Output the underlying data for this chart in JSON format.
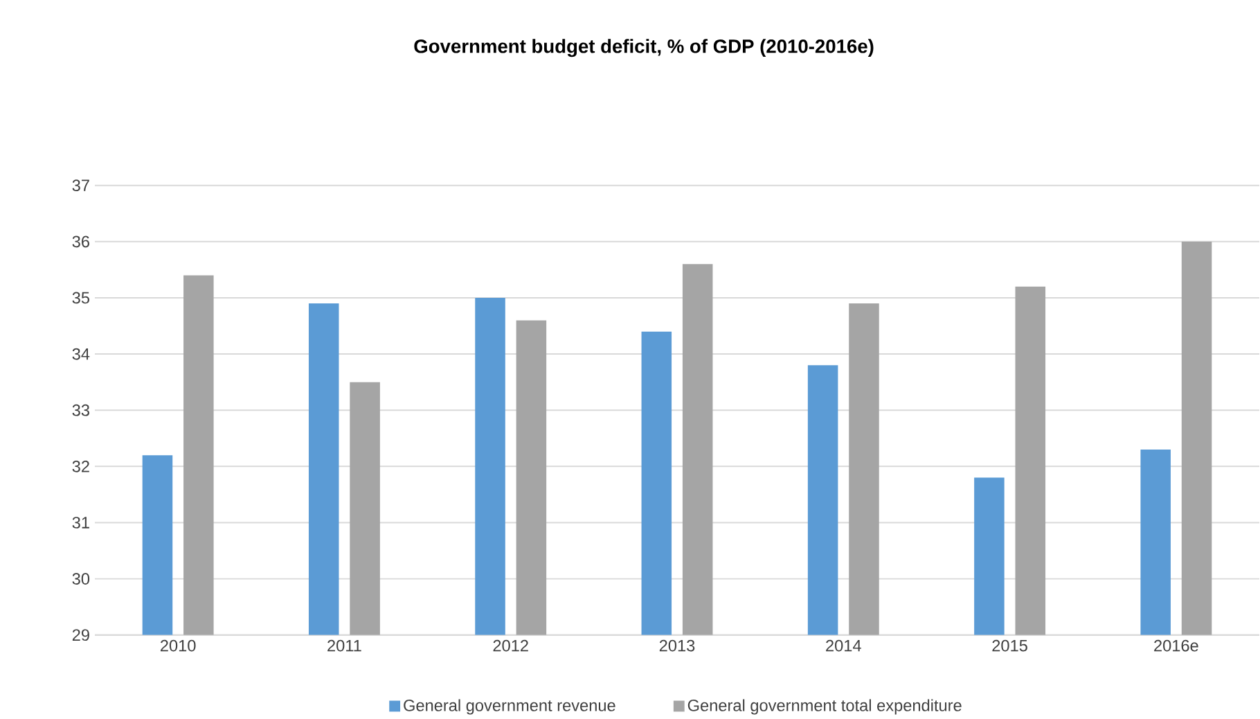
{
  "chart_data": {
    "type": "bar",
    "title": "Government budget deficit, % of GDP (2010-2016e)",
    "categories": [
      "2010",
      "2011",
      "2012",
      "2013",
      "2014",
      "2015",
      "2016e"
    ],
    "series": [
      {
        "name": "General government revenue",
        "color": "#5b9bd5",
        "values": [
          32.2,
          34.9,
          35.0,
          34.4,
          33.8,
          31.8,
          32.3
        ]
      },
      {
        "name": "General government total expenditure",
        "color": "#a5a5a5",
        "values": [
          35.4,
          33.5,
          34.6,
          35.6,
          34.9,
          35.2,
          36.0
        ]
      }
    ],
    "ylim": [
      29,
      37
    ],
    "yticks": [
      29,
      30,
      31,
      32,
      33,
      34,
      35,
      36,
      37
    ],
    "grid": "y",
    "legend": "bottom"
  }
}
